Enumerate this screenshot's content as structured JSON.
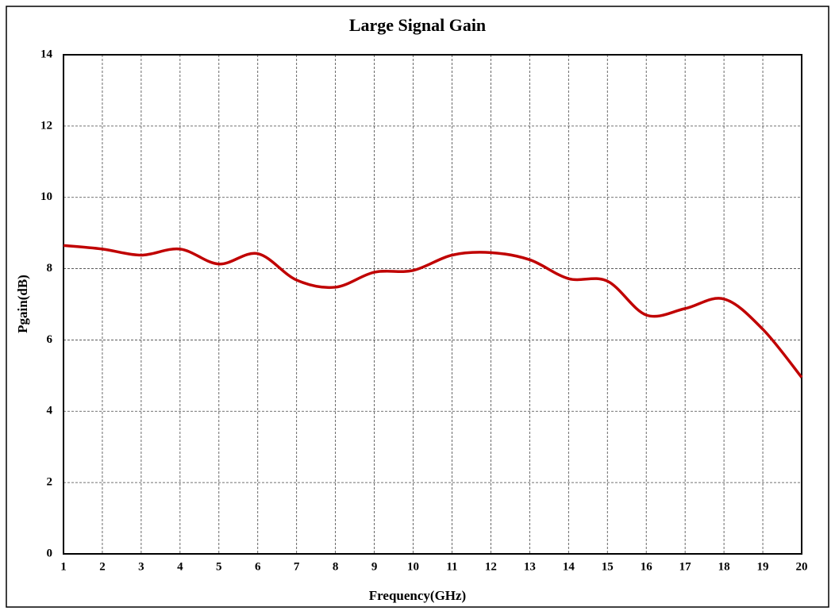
{
  "chart_data": {
    "type": "line",
    "title": "Large Signal Gain",
    "xlabel": "Frequency(GHz)",
    "ylabel": "Pgain(dB)",
    "x": [
      1,
      2,
      3,
      4,
      5,
      6,
      7,
      8,
      9,
      10,
      11,
      12,
      13,
      14,
      15,
      16,
      17,
      18,
      19,
      20
    ],
    "series": [
      {
        "name": "Pgain",
        "color": "#c00000",
        "values": [
          8.65,
          8.55,
          8.38,
          8.55,
          8.13,
          8.42,
          7.68,
          7.48,
          7.9,
          7.95,
          8.38,
          8.45,
          8.25,
          7.72,
          7.65,
          6.7,
          6.88,
          7.15,
          6.3,
          4.95
        ]
      }
    ],
    "xlim": [
      1,
      20
    ],
    "xticks": [
      1,
      2,
      3,
      4,
      5,
      6,
      7,
      8,
      9,
      10,
      11,
      12,
      13,
      14,
      15,
      16,
      17,
      18,
      19,
      20
    ],
    "ylim": [
      0,
      14
    ],
    "yticks": [
      0,
      2,
      4,
      6,
      8,
      10,
      12,
      14
    ],
    "grid": true
  }
}
